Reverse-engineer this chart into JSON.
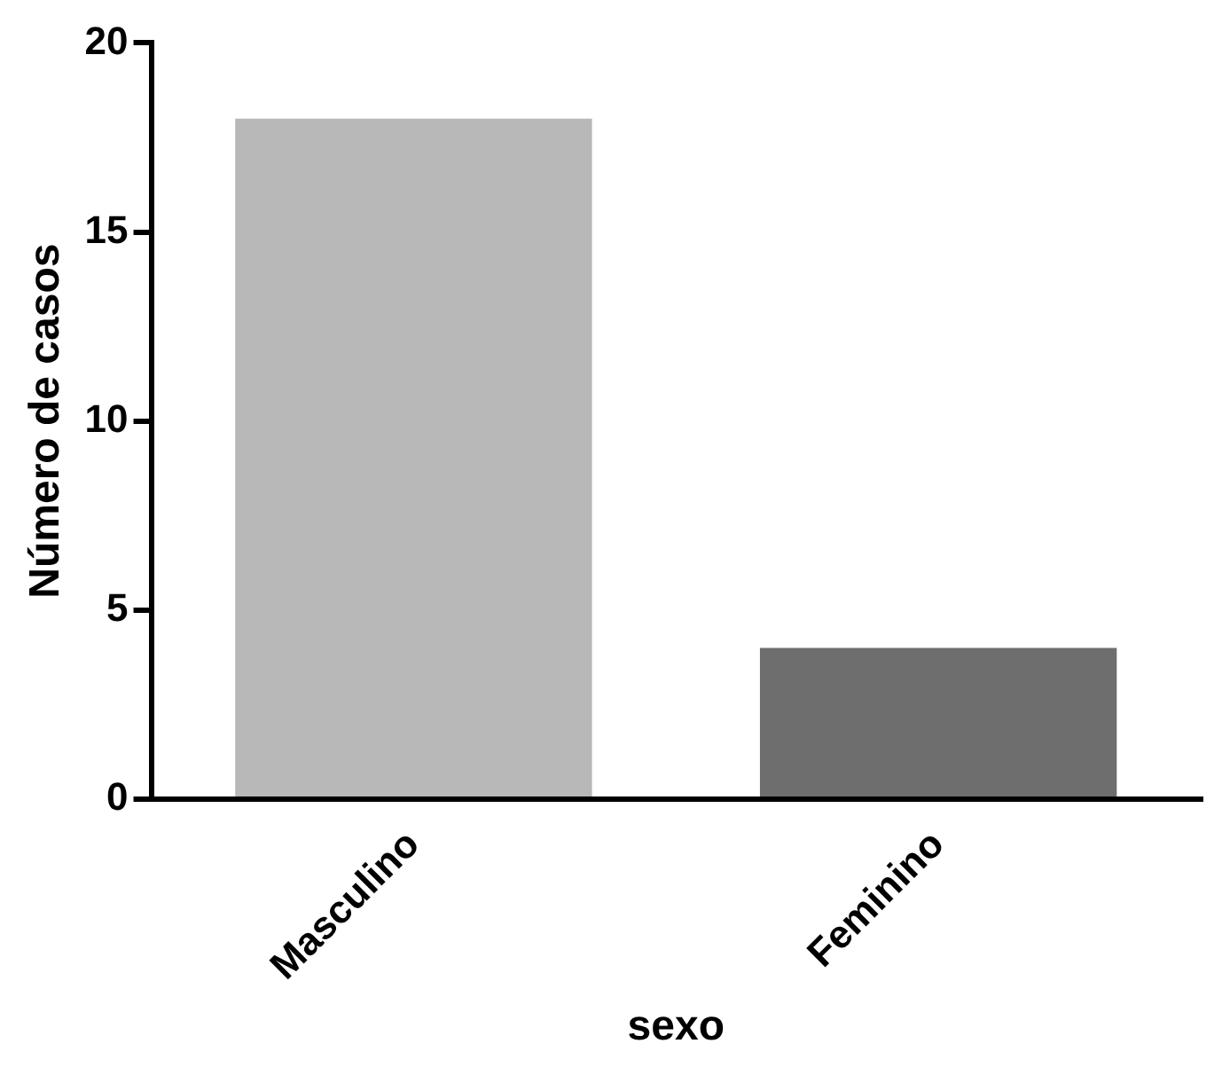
{
  "chart_data": {
    "type": "bar",
    "xlabel": "sexo",
    "ylabel": "Número de casos",
    "categories": [
      "Masculino",
      "Feminino"
    ],
    "values": [
      18,
      4
    ],
    "colors": [
      "#b8b8b8",
      "#6e6e6e"
    ],
    "ylim": [
      0,
      20
    ],
    "yticks": [
      0,
      5,
      10,
      15,
      20
    ],
    "grid": false,
    "legend": false
  }
}
